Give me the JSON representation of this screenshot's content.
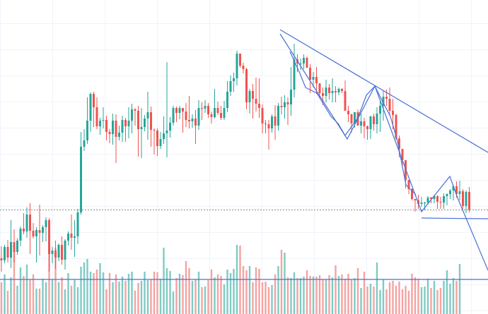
{
  "chart_data": {
    "type": "candlestick",
    "title": "",
    "xlabel": "",
    "ylabel": "",
    "grid": true,
    "colors": {
      "up": "#26a69a",
      "down": "#ef5350",
      "volume_up": "#7fcbc3",
      "volume_down": "#f4a3a1",
      "drawing": "#4a6fd6",
      "price_line": "#888888"
    },
    "ylim": [
      0,
      445
    ],
    "volume_max": 110,
    "last_close": 297,
    "candles": [
      [
        366,
        349,
        385,
        369
      ],
      [
        369,
        347,
        373,
        350
      ],
      [
        350,
        340,
        372,
        365
      ],
      [
        365,
        312,
        380,
        343
      ],
      [
        343,
        325,
        372,
        357
      ],
      [
        357,
        338,
        361,
        341
      ],
      [
        341,
        321,
        349,
        324
      ],
      [
        324,
        302,
        332,
        328
      ],
      [
        328,
        294,
        337,
        304
      ],
      [
        304,
        288,
        360,
        327
      ],
      [
        327,
        316,
        338,
        335
      ],
      [
        335,
        322,
        372,
        326
      ],
      [
        326,
        290,
        362,
        330
      ],
      [
        330,
        319,
        343,
        322
      ],
      [
        322,
        308,
        342,
        312
      ],
      [
        312,
        309,
        385,
        360
      ],
      [
        360,
        350,
        373,
        355
      ],
      [
        355,
        341,
        381,
        365
      ],
      [
        365,
        345,
        370,
        347
      ],
      [
        347,
        335,
        375,
        368
      ],
      [
        368,
        339,
        382,
        341
      ],
      [
        341,
        328,
        348,
        331
      ],
      [
        331,
        304,
        354,
        337
      ],
      [
        337,
        312,
        364,
        335
      ],
      [
        335,
        296,
        346,
        301
      ],
      [
        301,
        187,
        304,
        208
      ],
      [
        208,
        183,
        214,
        199
      ],
      [
        199,
        138,
        204,
        171
      ],
      [
        171,
        131,
        187,
        133
      ],
      [
        133,
        130,
        180,
        152
      ],
      [
        152,
        138,
        183,
        179
      ],
      [
        179,
        167,
        191,
        171
      ],
      [
        171,
        152,
        182,
        170
      ],
      [
        170,
        164,
        199,
        187
      ],
      [
        187,
        183,
        203,
        190
      ],
      [
        190,
        161,
        205,
        171
      ],
      [
        171,
        162,
        231,
        194
      ],
      [
        194,
        178,
        199,
        188
      ],
      [
        188,
        164,
        201,
        170
      ],
      [
        170,
        167,
        201,
        179
      ],
      [
        179,
        152,
        196,
        171
      ],
      [
        171,
        147,
        189,
        155
      ],
      [
        155,
        153,
        178,
        157
      ],
      [
        157,
        150,
        222,
        183
      ],
      [
        183,
        153,
        224,
        180
      ],
      [
        180,
        163,
        186,
        168
      ],
      [
        168,
        130,
        198,
        159
      ],
      [
        159,
        151,
        208,
        184
      ],
      [
        184,
        182,
        219,
        185
      ],
      [
        185,
        182,
        221,
        207
      ],
      [
        207,
        187,
        211,
        197
      ],
      [
        197,
        165,
        204,
        189
      ],
      [
        189,
        88,
        223,
        185
      ],
      [
        185,
        166,
        195,
        174
      ],
      [
        174,
        150,
        178,
        153
      ],
      [
        153,
        151,
        173,
        160
      ],
      [
        160,
        150,
        169,
        153
      ],
      [
        153,
        155,
        188,
        158
      ],
      [
        158,
        146,
        180,
        170
      ],
      [
        170,
        136,
        182,
        172
      ],
      [
        172,
        162,
        181,
        168
      ],
      [
        168,
        156,
        204,
        178
      ],
      [
        178,
        142,
        184,
        153
      ],
      [
        153,
        145,
        170,
        154
      ],
      [
        154,
        142,
        160,
        150
      ],
      [
        150,
        146,
        167,
        162
      ],
      [
        162,
        158,
        175,
        166
      ],
      [
        166,
        126,
        168,
        153
      ],
      [
        153,
        144,
        163,
        160
      ],
      [
        160,
        150,
        170,
        167
      ],
      [
        167,
        143,
        170,
        153
      ],
      [
        153,
        115,
        159,
        130
      ],
      [
        130,
        107,
        136,
        115
      ],
      [
        115,
        103,
        130,
        111
      ],
      [
        111,
        72,
        121,
        76
      ],
      [
        76,
        76,
        96,
        93
      ],
      [
        93,
        89,
        104,
        98
      ],
      [
        98,
        96,
        155,
        145
      ],
      [
        145,
        126,
        161,
        129
      ],
      [
        129,
        119,
        168,
        140
      ],
      [
        140,
        110,
        158,
        147
      ],
      [
        147,
        111,
        167,
        153
      ],
      [
        153,
        148,
        189,
        175
      ],
      [
        175,
        170,
        189,
        176
      ],
      [
        176,
        170,
        212,
        182
      ],
      [
        182,
        162,
        188,
        165
      ],
      [
        165,
        149,
        198,
        178
      ],
      [
        178,
        146,
        185,
        150
      ],
      [
        150,
        137,
        162,
        152
      ],
      [
        152,
        135,
        168,
        145
      ],
      [
        145,
        138,
        177,
        148
      ],
      [
        148,
        95,
        164,
        127
      ],
      [
        127,
        62,
        138,
        84
      ],
      [
        84,
        77,
        102,
        90
      ],
      [
        90,
        83,
        99,
        90
      ],
      [
        90,
        77,
        98,
        82
      ],
      [
        82,
        80,
        96,
        96
      ],
      [
        96,
        91,
        132,
        113
      ],
      [
        113,
        102,
        124,
        109
      ],
      [
        109,
        95,
        133,
        118
      ],
      [
        118,
        119,
        139,
        132
      ],
      [
        132,
        124,
        149,
        136
      ],
      [
        136,
        113,
        145,
        124
      ],
      [
        124,
        119,
        141,
        132
      ],
      [
        132,
        111,
        145,
        129
      ],
      [
        129,
        122,
        145,
        131
      ],
      [
        131,
        124,
        135,
        126
      ],
      [
        126,
        125,
        132,
        129
      ],
      [
        129,
        114,
        153,
        157
      ],
      [
        157,
        150,
        173,
        162
      ],
      [
        162,
        161,
        188,
        175
      ],
      [
        175,
        159,
        181,
        159
      ],
      [
        159,
        155,
        175,
        178
      ],
      [
        178,
        161,
        189,
        172
      ],
      [
        172,
        167,
        196,
        179
      ],
      [
        179,
        178,
        198,
        183
      ],
      [
        183,
        164,
        197,
        165
      ],
      [
        165,
        161,
        185,
        176
      ],
      [
        176,
        152,
        189,
        161
      ],
      [
        161,
        142,
        187,
        150
      ],
      [
        150,
        128,
        171,
        137
      ],
      [
        137,
        127,
        150,
        140
      ],
      [
        140,
        124,
        164,
        157
      ],
      [
        157,
        140,
        183,
        163
      ],
      [
        163,
        161,
        198,
        196
      ],
      [
        196,
        192,
        223,
        211
      ],
      [
        211,
        213,
        236,
        227
      ],
      [
        227,
        227,
        267,
        255
      ],
      [
        255,
        255,
        275,
        268
      ],
      [
        268,
        267,
        284,
        282
      ],
      [
        282,
        282,
        300,
        284
      ],
      [
        284,
        276,
        296,
        289
      ],
      [
        289,
        279,
        293,
        287
      ],
      [
        287,
        286,
        297,
        287
      ],
      [
        287,
        278,
        290,
        280
      ],
      [
        280,
        279,
        288,
        282
      ],
      [
        282,
        276,
        288,
        278
      ],
      [
        278,
        277,
        296,
        286
      ],
      [
        286,
        279,
        296,
        287
      ],
      [
        287,
        274,
        296,
        278
      ],
      [
        278,
        274,
        291,
        275
      ],
      [
        275,
        268,
        282,
        270
      ],
      [
        270,
        262,
        284,
        264
      ],
      [
        264,
        257,
        280,
        275
      ],
      [
        275,
        256,
        284,
        271
      ],
      [
        271,
        268,
        296,
        292
      ],
      [
        292,
        270,
        302,
        272
      ],
      [
        272,
        265,
        301,
        297
      ]
    ],
    "volumes": [
      45,
      56,
      33,
      52,
      88,
      40,
      66,
      54,
      70,
      49,
      56,
      36,
      36,
      50,
      45,
      103,
      49,
      94,
      45,
      52,
      35,
      58,
      40,
      49,
      38,
      67,
      73,
      78,
      60,
      58,
      63,
      72,
      59,
      35,
      58,
      45,
      56,
      46,
      53,
      47,
      57,
      60,
      33,
      44,
      47,
      60,
      48,
      49,
      60,
      59,
      50,
      94,
      65,
      61,
      32,
      51,
      57,
      55,
      75,
      65,
      47,
      49,
      60,
      38,
      39,
      48,
      63,
      52,
      56,
      54,
      42,
      63,
      58,
      64,
      98,
      97,
      68,
      62,
      68,
      45,
      66,
      64,
      45,
      46,
      38,
      41,
      56,
      68,
      91,
      87,
      52,
      51,
      59,
      51,
      51,
      53,
      62,
      54,
      53,
      53,
      55,
      49,
      49,
      55,
      52,
      69,
      54,
      56,
      50,
      57,
      49,
      51,
      65,
      37,
      60,
      39,
      43,
      39,
      73,
      34,
      49,
      35,
      45,
      47,
      40,
      46,
      35,
      40,
      33,
      57,
      52,
      50,
      38,
      39,
      50,
      37,
      47,
      34,
      37,
      47,
      62,
      43,
      51,
      47,
      71
    ],
    "drawings": {
      "trendlines": [
        [
          [
            396,
            42
          ],
          [
            690,
            216
          ]
        ],
        [
          [
            596,
            309
          ],
          [
            690,
            310
          ]
        ],
        [
          [
            0,
            396
          ],
          [
            690,
            396
          ]
        ],
        [
          [
            648,
            283
          ],
          [
            690,
            383
          ]
        ]
      ],
      "zigzags": [
        [
          [
            396,
            48
          ],
          [
            491,
            197
          ],
          [
            530,
            122
          ],
          [
            596,
            300
          ],
          [
            636,
            250
          ],
          [
            648,
            283
          ]
        ],
        [
          [
            410,
            73
          ],
          [
            424,
            104
          ],
          [
            432,
            124
          ],
          [
            448,
            132
          ],
          [
            468,
            165
          ],
          [
            478,
            175
          ],
          [
            488,
            192
          ],
          [
            506,
            167
          ],
          [
            518,
            135
          ],
          [
            530,
            122
          ],
          [
            540,
            142
          ],
          [
            552,
            165
          ],
          [
            562,
            200
          ],
          [
            574,
            262
          ],
          [
            588,
            276
          ]
        ]
      ]
    }
  }
}
